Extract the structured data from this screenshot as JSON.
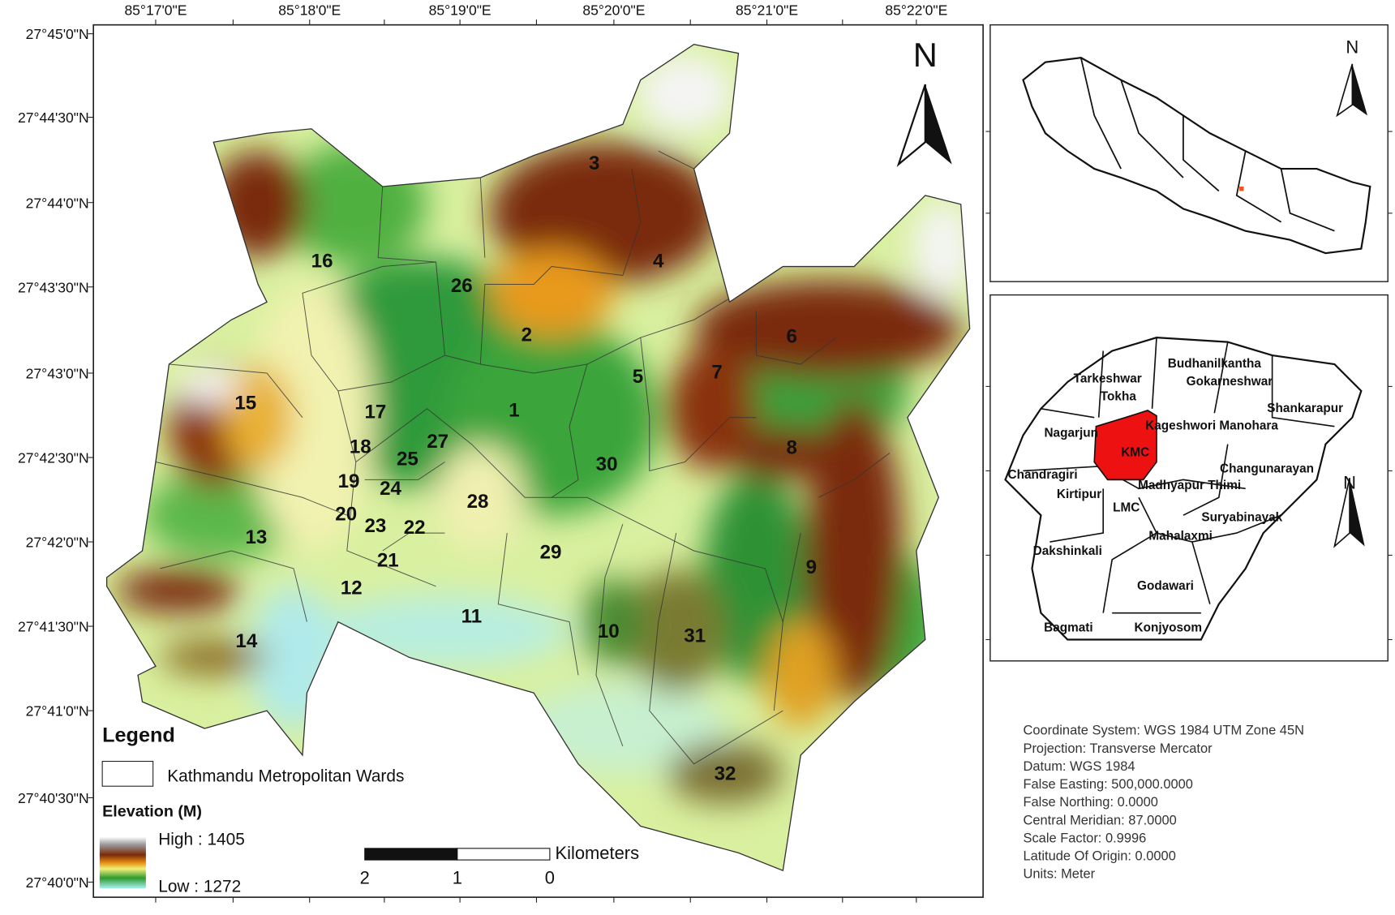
{
  "map": {
    "lon_labels": [
      "85°17'0\"E",
      "85°18'0\"E",
      "85°19'0\"E",
      "85°20'0\"E",
      "85°21'0\"E",
      "85°22'0\"E"
    ],
    "lat_labels": [
      "27°45'0\"N",
      "27°44'30\"N",
      "27°44'0\"N",
      "27°43'30\"N",
      "27°43'0\"N",
      "27°42'30\"N",
      "27°42'0\"N",
      "27°41'30\"N",
      "27°41'0\"N",
      "27°40'30\"N",
      "27°40'0\"N"
    ],
    "wards": [
      "1",
      "2",
      "3",
      "4",
      "5",
      "6",
      "7",
      "8",
      "9",
      "10",
      "11",
      "12",
      "13",
      "14",
      "15",
      "16",
      "17",
      "18",
      "19",
      "20",
      "21",
      "22",
      "23",
      "24",
      "25",
      "26",
      "27",
      "28",
      "29",
      "30",
      "31",
      "32"
    ],
    "north": "N"
  },
  "legend": {
    "title": "Legend",
    "wards_label": "Kathmandu Metropolitan Wards",
    "elevation_title": "Elevation (M)",
    "high": "High : 1405",
    "low": "Low : 1272"
  },
  "scale_bar": {
    "unit": "Kilometers",
    "labels": [
      "2",
      "1",
      "0"
    ]
  },
  "inset_nepal": {
    "north": "N"
  },
  "inset_valley": {
    "north": "N",
    "districts": [
      "Tarkeshwar",
      "Budhanilkantha",
      "Tokha",
      "Gokarneshwar",
      "Shankarapur",
      "Nagarjun",
      "Kageshwori Manohara",
      "KMC",
      "Changunarayan",
      "Chandragiri",
      "Madhyapur Thimi",
      "Kirtipur",
      "LMC",
      "Suryabinayak",
      "Mahalaxmi",
      "Dakshinkali",
      "Godawari",
      "Bagmati",
      "Konjyosom"
    ]
  },
  "projection_info": [
    "Coordinate System: WGS 1984 UTM Zone 45N",
    "Projection: Transverse Mercator",
    "Datum: WGS 1984",
    "False Easting: 500,000.0000",
    "False Northing: 0.0000",
    "Central Meridian: 87.0000",
    "Scale Factor: 0.9996",
    "Latitude Of Origin: 0.0000",
    "Units: Meter"
  ]
}
